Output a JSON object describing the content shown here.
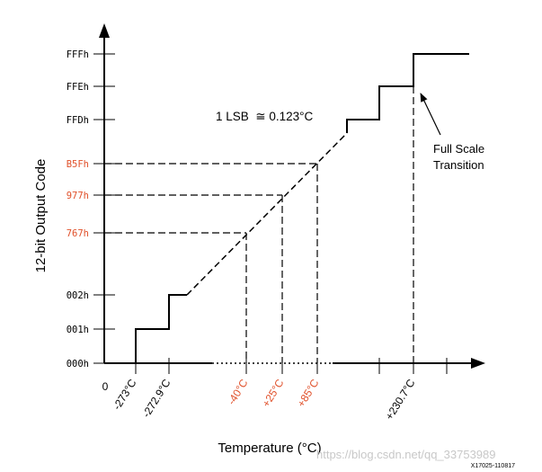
{
  "figure": {
    "y_axis_label": "12-bit Output Code",
    "x_axis_label": "Temperature (°C)",
    "origin_label": "0",
    "lsb_note": "1 LSB  ≅ 0.123°C",
    "transition_note_line1": "Full Scale",
    "transition_note_line2": "Transition",
    "figure_id": "X17025-110817",
    "watermark": "https://blog.csdn.net/qq_33753989"
  },
  "colors": {
    "line": "#000000",
    "highlight": "#e0502a",
    "watermark": "#c8c8c8"
  },
  "chart_data": {
    "type": "line",
    "title": "",
    "xlabel": "Temperature (°C)",
    "ylabel": "12-bit Output Code",
    "y_codes": [
      {
        "label": "000h",
        "highlight": false
      },
      {
        "label": "001h",
        "highlight": false
      },
      {
        "label": "002h",
        "highlight": false
      },
      {
        "label": "767h",
        "highlight": true
      },
      {
        "label": "977h",
        "highlight": true
      },
      {
        "label": "B5Fh",
        "highlight": true
      },
      {
        "label": "FFDh",
        "highlight": false
      },
      {
        "label": "FFEh",
        "highlight": false
      },
      {
        "label": "FFFh",
        "highlight": false
      }
    ],
    "x_marks": [
      {
        "label": "-273°C",
        "highlight": false
      },
      {
        "label": "-272.9°C",
        "highlight": false
      },
      {
        "label": "-40°C",
        "highlight": true
      },
      {
        "label": "+25°C",
        "highlight": true
      },
      {
        "label": "+85°C",
        "highlight": true
      },
      {
        "label": "+230.7°C",
        "highlight": false
      }
    ],
    "highlighted_points": [
      {
        "temperature_c": -40,
        "code": "767h"
      },
      {
        "temperature_c": 25,
        "code": "977h"
      },
      {
        "temperature_c": 85,
        "code": "B5Fh"
      }
    ],
    "full_scale_transition": {
      "temperature_c": 230.7,
      "code": "FFFh"
    },
    "lsb_c": 0.123
  }
}
